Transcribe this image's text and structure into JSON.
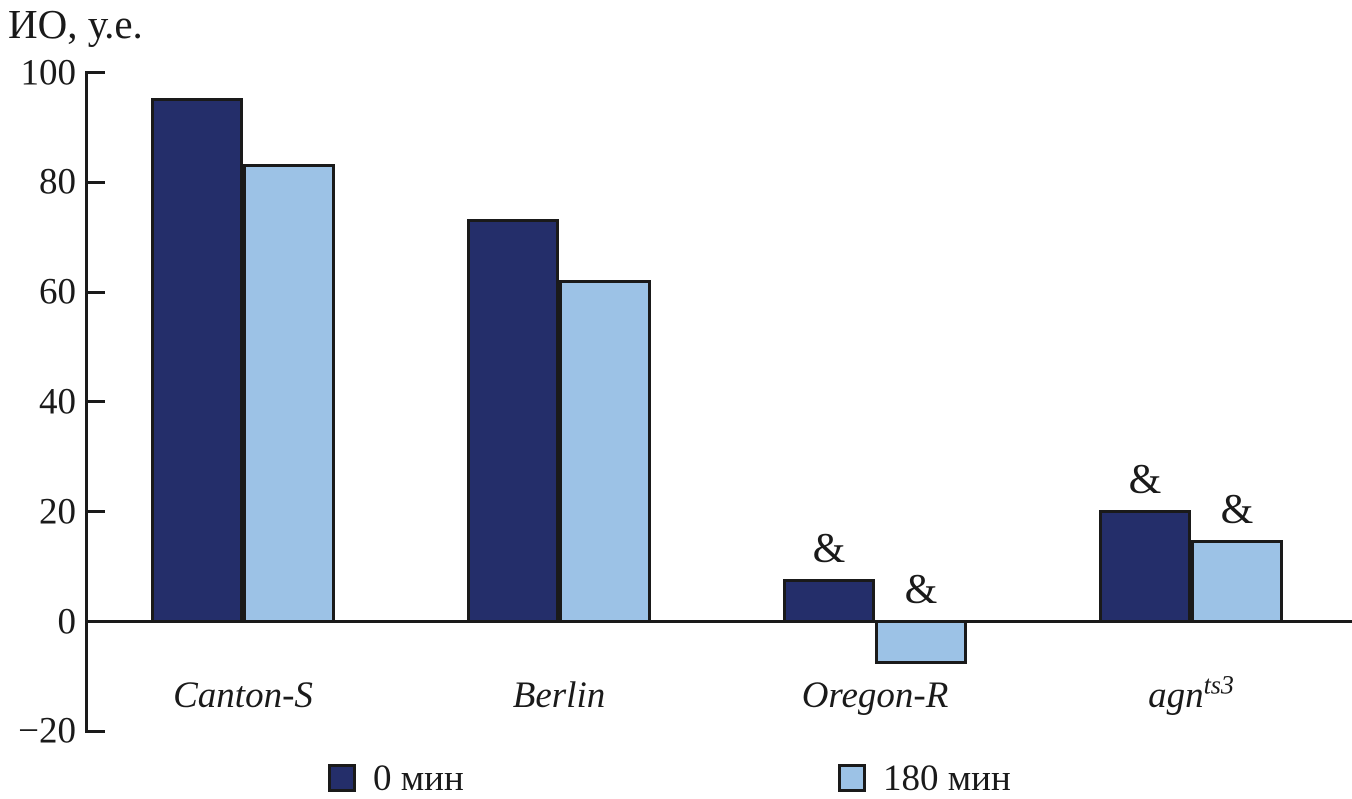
{
  "title": "ИО, у.е.",
  "legend": {
    "items": [
      {
        "label": "0 мин",
        "color": "#242e6a"
      },
      {
        "label": "180 мин",
        "color": "#9cc2e6"
      }
    ]
  },
  "chart_data": {
    "type": "bar",
    "title": "ИО, у.е.",
    "ylabel": "ИО, у.е.",
    "xlabel": "",
    "ylim": [
      -20,
      100
    ],
    "yticks": [
      100,
      80,
      60,
      40,
      20,
      0,
      -20
    ],
    "grid": false,
    "legend_position": "bottom",
    "categories": [
      {
        "label": "Canton-S",
        "sup": ""
      },
      {
        "label": "Berlin",
        "sup": ""
      },
      {
        "label": "Oregon-R",
        "sup": ""
      },
      {
        "label": "agn",
        "sup": "ts3"
      }
    ],
    "series": [
      {
        "name": "0 мин",
        "color": "#242e6a",
        "values": [
          95,
          73,
          7.5,
          20
        ]
      },
      {
        "name": "180 мин",
        "color": "#9cc2e6",
        "values": [
          83,
          62,
          -7.5,
          14.5
        ]
      }
    ],
    "annotations": [
      {
        "category_index": 2,
        "series_index": 0,
        "text": "&"
      },
      {
        "category_index": 2,
        "series_index": 1,
        "text": "&"
      },
      {
        "category_index": 3,
        "series_index": 0,
        "text": "&"
      },
      {
        "category_index": 3,
        "series_index": 1,
        "text": "&"
      }
    ]
  }
}
